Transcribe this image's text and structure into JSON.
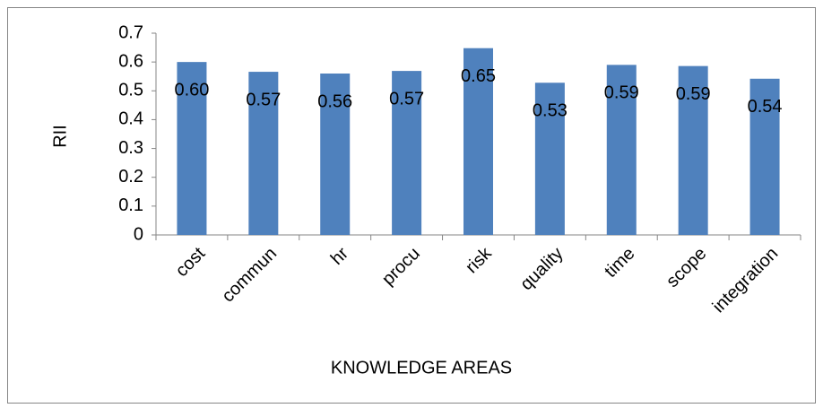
{
  "chart_data": {
    "type": "bar",
    "categories": [
      "cost",
      "commun",
      "hr",
      "procu",
      "risk",
      "quality",
      "time",
      "scope",
      "integration"
    ],
    "values": [
      0.6,
      0.566,
      0.56,
      0.569,
      0.648,
      0.528,
      0.59,
      0.586,
      0.542
    ],
    "value_labels": [
      "0.60",
      "0.57",
      "0.56",
      "0.57",
      "0.65",
      "0.53",
      "0.59",
      "0.59",
      "0.54"
    ],
    "color": "#4f81bd",
    "y_label": "RII",
    "x_label": "KNOWLEDGE AREAS",
    "ylim": [
      0,
      0.7
    ],
    "yticks": [
      0,
      0.1,
      0.2,
      0.3,
      0.4,
      0.5,
      0.6,
      0.7
    ],
    "grid": false
  }
}
